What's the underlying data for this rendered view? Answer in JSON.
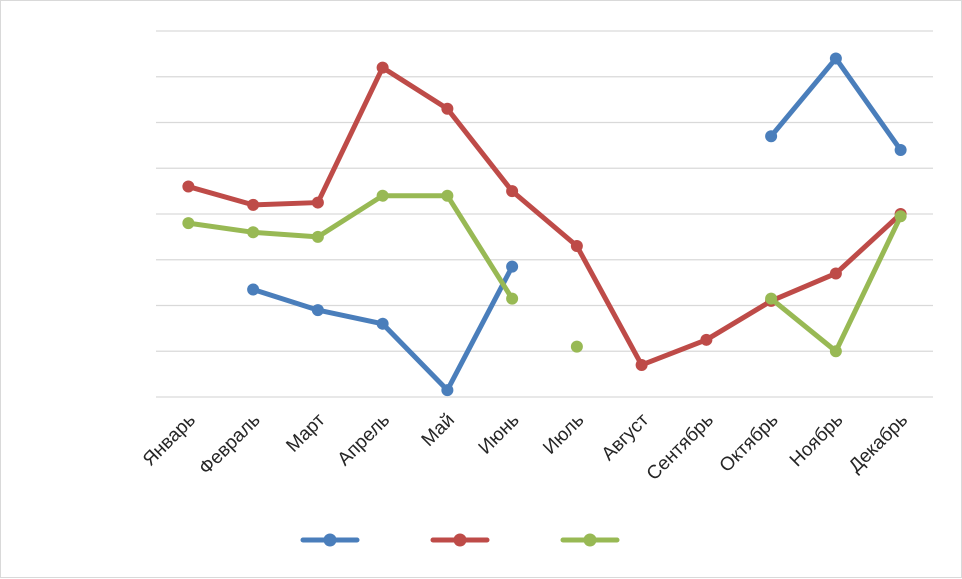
{
  "chart_data": {
    "type": "line",
    "title": "",
    "xlabel": "",
    "ylabel": "",
    "categories": [
      "Январь",
      "Февраль",
      "Март",
      "Апрель",
      "Май",
      "Июнь",
      "Июль",
      "Август",
      "Сентябрь",
      "Октябрь",
      "Ноябрь",
      "Декабрь"
    ],
    "ylim": [
      0,
      8
    ],
    "y_tick_labels_visible": false,
    "grid": "horizontal",
    "legend": "bottom",
    "series": [
      {
        "color": "#4a7ebb",
        "values": [
          null,
          2.35,
          1.9,
          1.6,
          0.15,
          2.85,
          null,
          null,
          null,
          5.7,
          7.4,
          5.4
        ]
      },
      {
        "color": "#be4b48",
        "values": [
          4.6,
          4.2,
          4.25,
          7.2,
          6.3,
          4.5,
          3.3,
          0.7,
          1.25,
          2.1,
          2.7,
          4.0
        ]
      },
      {
        "color": "#98b954",
        "values": [
          3.8,
          3.6,
          3.5,
          4.4,
          4.4,
          2.15,
          null,
          null,
          null,
          2.15,
          1.0,
          3.95
        ]
      }
    ],
    "extra_points": [
      {
        "series": 2,
        "category": "Июль",
        "value": 1.1
      }
    ]
  }
}
